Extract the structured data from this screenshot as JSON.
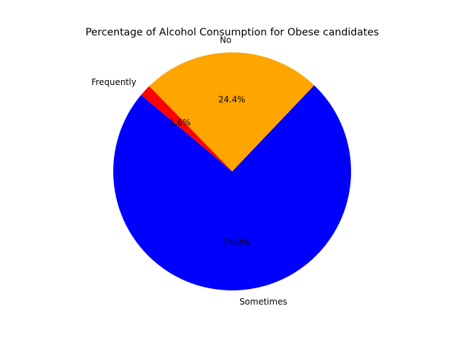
{
  "chart_data": {
    "type": "pie",
    "title": "Percentage of Alcohol Consumption for Obese candidates",
    "slices": [
      {
        "label": "Sometimes",
        "value": 74.0,
        "pct_label": "74.0%",
        "color": "#0000ff"
      },
      {
        "label": "No",
        "value": 24.4,
        "pct_label": "24.4%",
        "color": "#ffa500"
      },
      {
        "label": "Frequently",
        "value": 1.6,
        "pct_label": "1.6%",
        "color": "#ff0000"
      }
    ],
    "start_angle_deg": 140,
    "direction": "counterclockwise"
  }
}
